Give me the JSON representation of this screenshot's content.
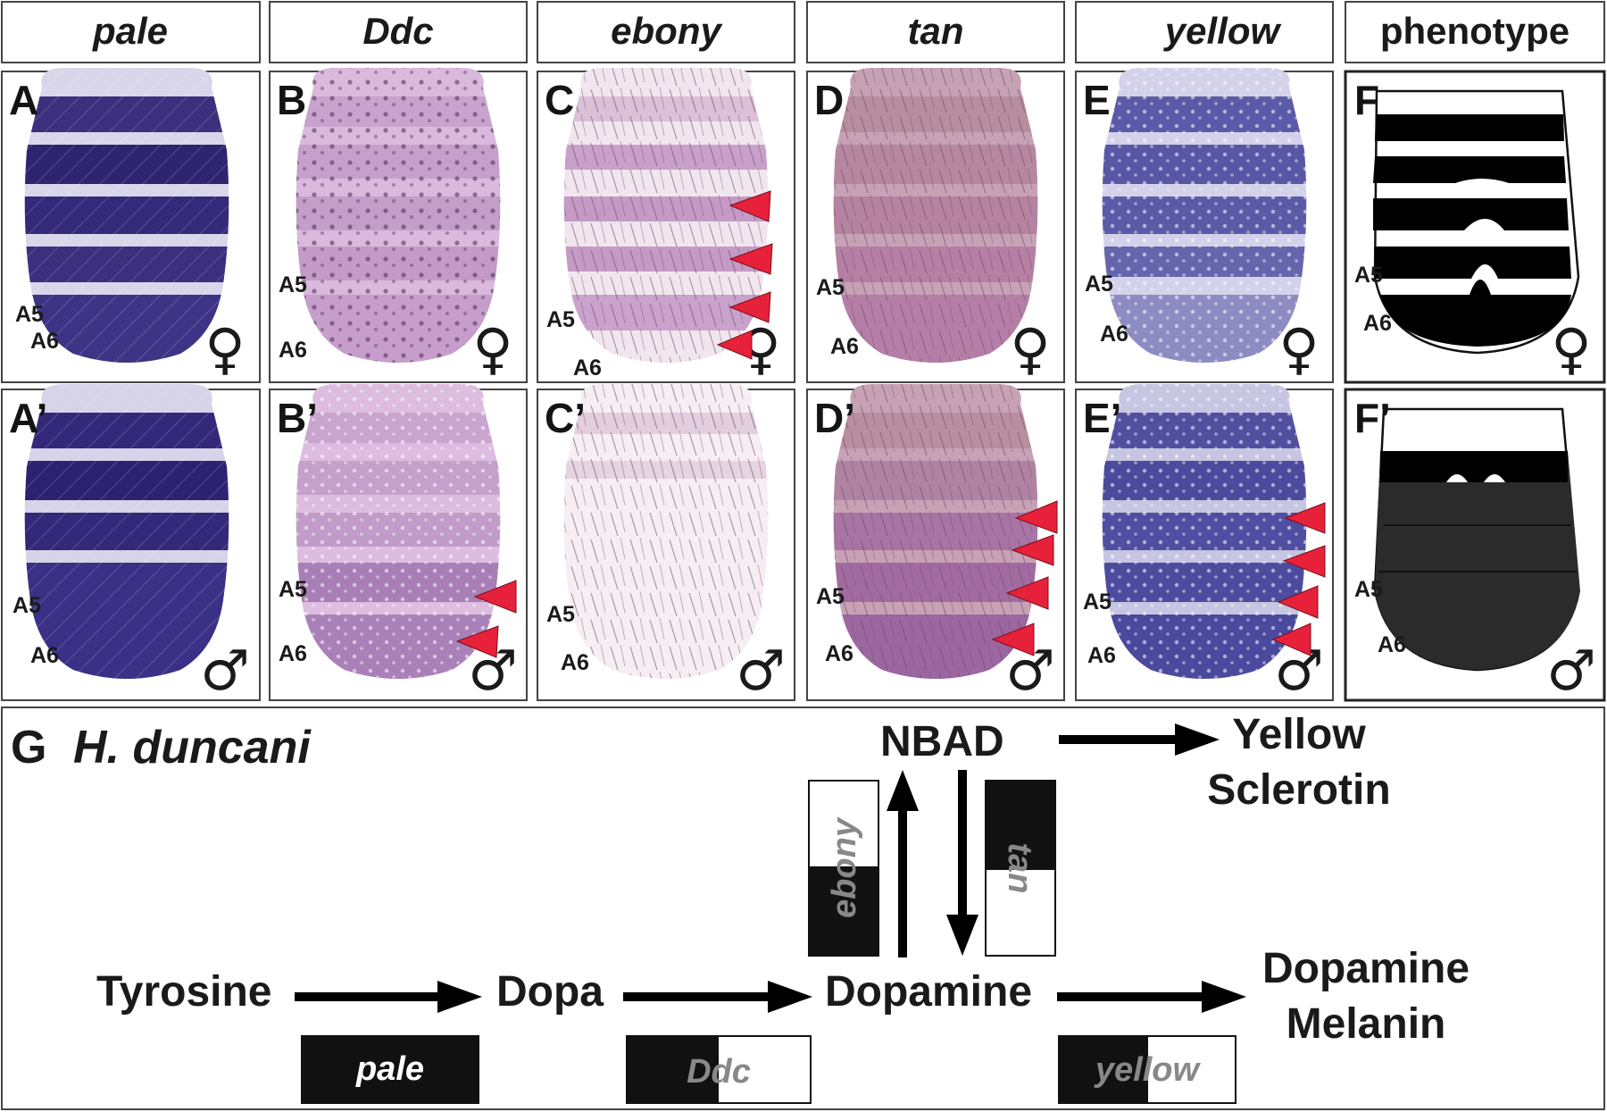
{
  "headers": [
    "pale",
    "Ddc",
    "ebony",
    "tan",
    "yellow",
    "phenotype"
  ],
  "panels_top": [
    "A",
    "B",
    "C",
    "D",
    "E",
    "F"
  ],
  "panels_bottom": [
    "A’",
    "B’",
    "C’",
    "D’",
    "E’",
    "F’"
  ],
  "segment_labels": {
    "a5": "A5",
    "a6": "A6"
  },
  "sex_symbols": {
    "female": "♀",
    "male": "♂"
  },
  "colors": {
    "pale_stain": "#3b2f7e",
    "ddc_stain": "#b88cc0",
    "ebony_stain": "#c9a0c9",
    "tan_stain": "#b77fa8",
    "yellow_stain": "#4f4ea0",
    "arrowhead": "#e8213a"
  },
  "pathway": {
    "panel_label": "G",
    "species": "H. duncani",
    "tyrosine": "Tyrosine",
    "dopa": "Dopa",
    "dopamine": "Dopamine",
    "nbad": "NBAD",
    "yellow_sclerotin_1": "Yellow",
    "yellow_sclerotin_2": "Sclerotin",
    "dopamine_melanin_1": "Dopamine",
    "dopamine_melanin_2": "Melanin",
    "gene_pale": "pale",
    "gene_ddc": "Ddc",
    "gene_ebony": "ebony",
    "gene_tan": "tan",
    "gene_yellow": "yellow"
  }
}
